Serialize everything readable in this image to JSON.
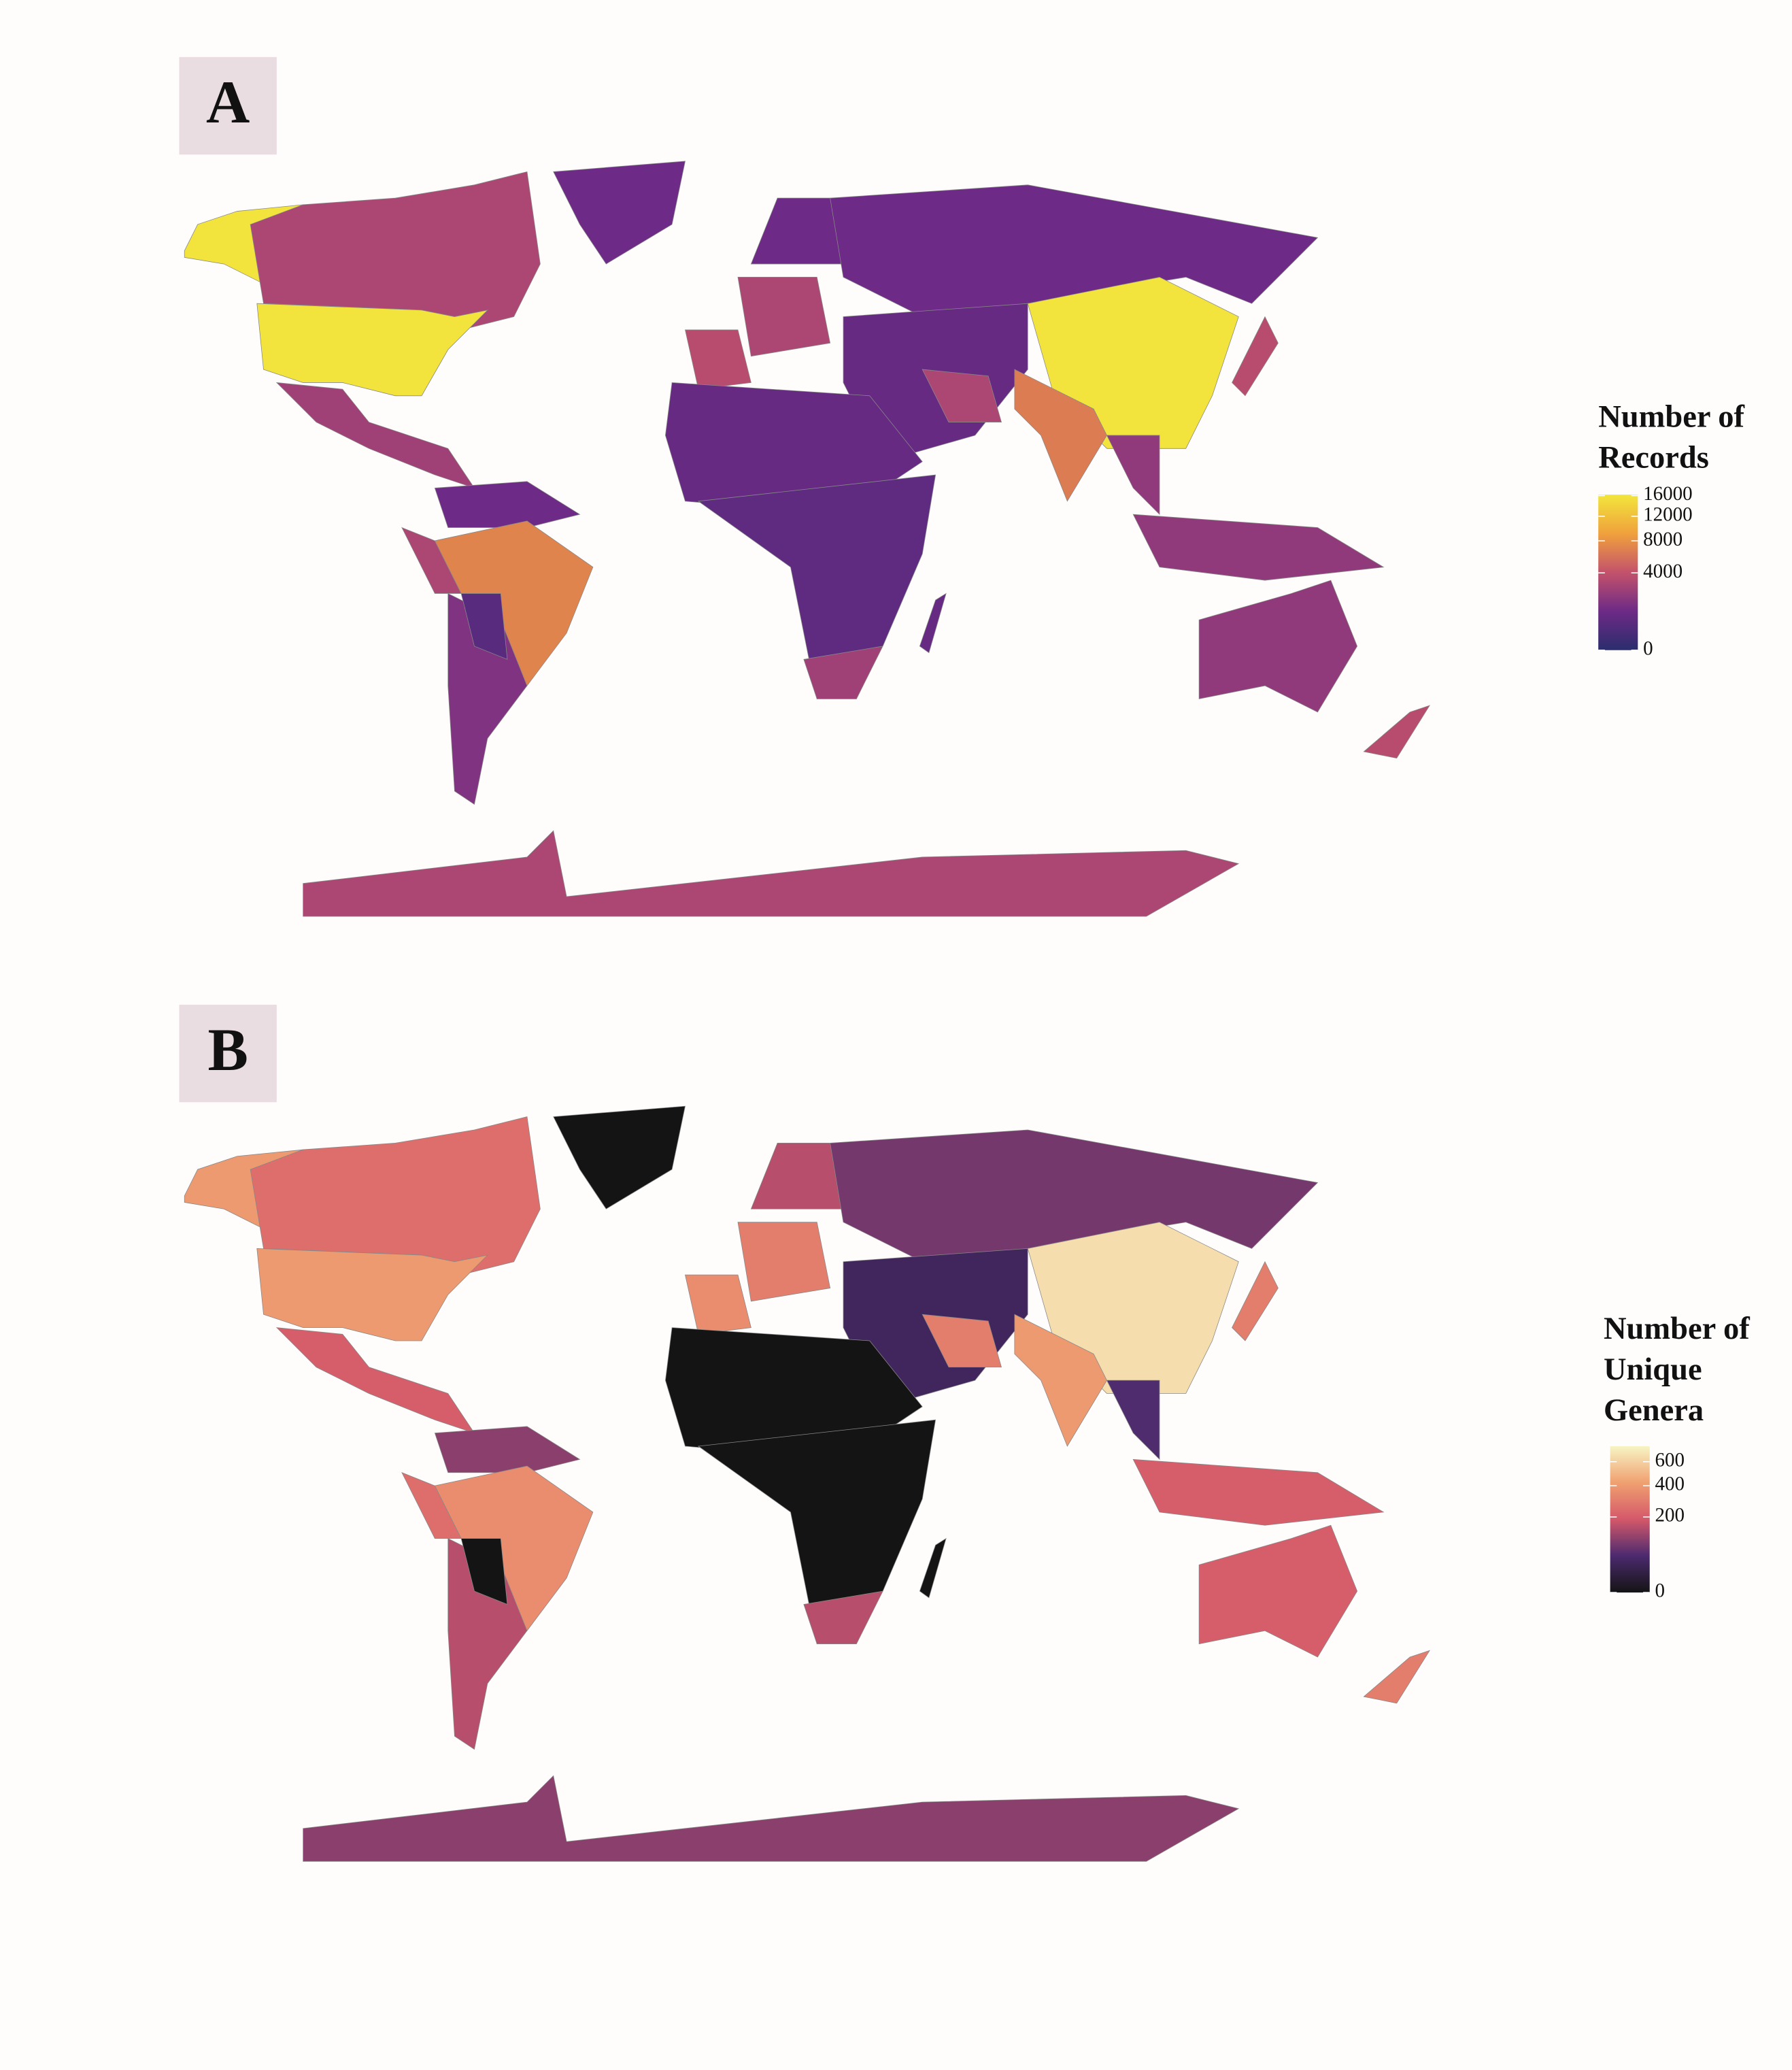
{
  "chart_data": [
    {
      "type": "choropleth",
      "label": "A",
      "legend_title": [
        "Number of",
        "Records"
      ],
      "scale": "sqrt",
      "lim": [
        0,
        16200
      ],
      "ticks": [
        0,
        4000,
        8000,
        12000,
        16000
      ],
      "colors": [
        "#2b2d6e",
        "#6d2a86",
        "#c4526b",
        "#f0a13c",
        "#f2e63c"
      ],
      "values": [
        16000,
        3000,
        16000,
        2500,
        1000,
        1000,
        7000,
        3000,
        1500,
        500,
        3500,
        3000,
        1000,
        1000,
        800,
        3000,
        16000,
        6500,
        2000,
        3500,
        2000,
        800,
        600,
        2500,
        800,
        2000,
        3500,
        3000
      ]
    },
    {
      "type": "choropleth",
      "label": "B",
      "legend_title": [
        "Number of",
        "Unique",
        "Genera"
      ],
      "scale": "sqrt",
      "lim": [
        0,
        750
      ],
      "ticks": [
        0,
        200,
        400,
        600
      ],
      "colors": [
        "#141414",
        "#4b2a6e",
        "#d4586a",
        "#f0a070",
        "#f7f4c4"
      ],
      "values": [
        400,
        250,
        400,
        200,
        0,
        100,
        350,
        250,
        150,
        0,
        350,
        300,
        150,
        80,
        30,
        300,
        650,
        400,
        50,
        300,
        200,
        0,
        0,
        150,
        0,
        200,
        300,
        100
      ]
    }
  ]
}
